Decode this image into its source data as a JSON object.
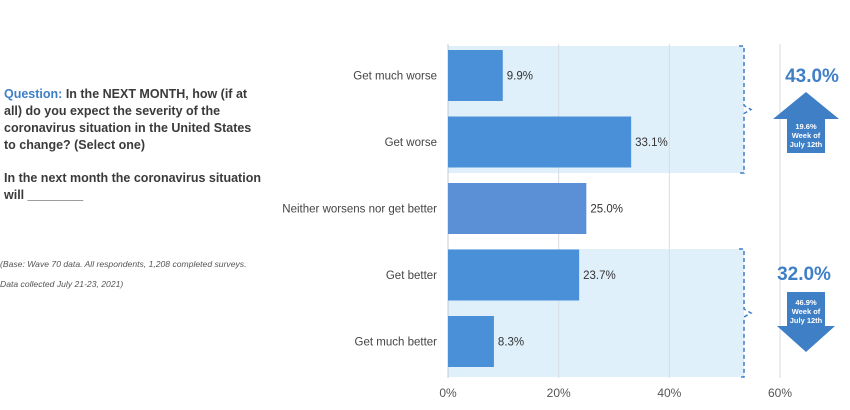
{
  "question": {
    "label": "Question:",
    "text": " In the NEXT MONTH, how (if at all) do you expect the severity of the coronavirus situation in the United States to change? (Select one)",
    "prompt": "In the next month the coronavirus situation will ________",
    "base": "(Base: Wave 70 data. All respondents, 1,208 completed surveys. Data collected July 21-23, 2021)"
  },
  "colors": {
    "bar": "#4a90d9",
    "bar_neutral": "#5b8fd6",
    "band": "#dff0fb",
    "accent": "#3f7fc6"
  },
  "chart_data": {
    "type": "bar",
    "orientation": "horizontal",
    "categories": [
      "Get much worse",
      "Get worse",
      "Neither worsens nor get better",
      "Get better",
      "Get much better"
    ],
    "values": [
      9.9,
      33.1,
      25.0,
      23.7,
      8.3
    ],
    "value_labels": [
      "9.9%",
      "33.1%",
      "25.0%",
      "23.7%",
      "8.3%"
    ],
    "xlim": [
      0,
      60
    ],
    "xticks": [
      0,
      20,
      40,
      60
    ],
    "xtick_labels": [
      "0%",
      "20%",
      "40%",
      "60%"
    ],
    "grid": true,
    "callouts": [
      {
        "group": "worse",
        "total": "43.0%",
        "previous": "19.6%",
        "previous_label_1": "Week of",
        "previous_label_2": "July 12th",
        "direction": "up"
      },
      {
        "group": "better",
        "total": "32.0%",
        "previous": "46.9%",
        "previous_label_1": "Week of",
        "previous_label_2": "July 12th",
        "direction": "down"
      }
    ]
  }
}
